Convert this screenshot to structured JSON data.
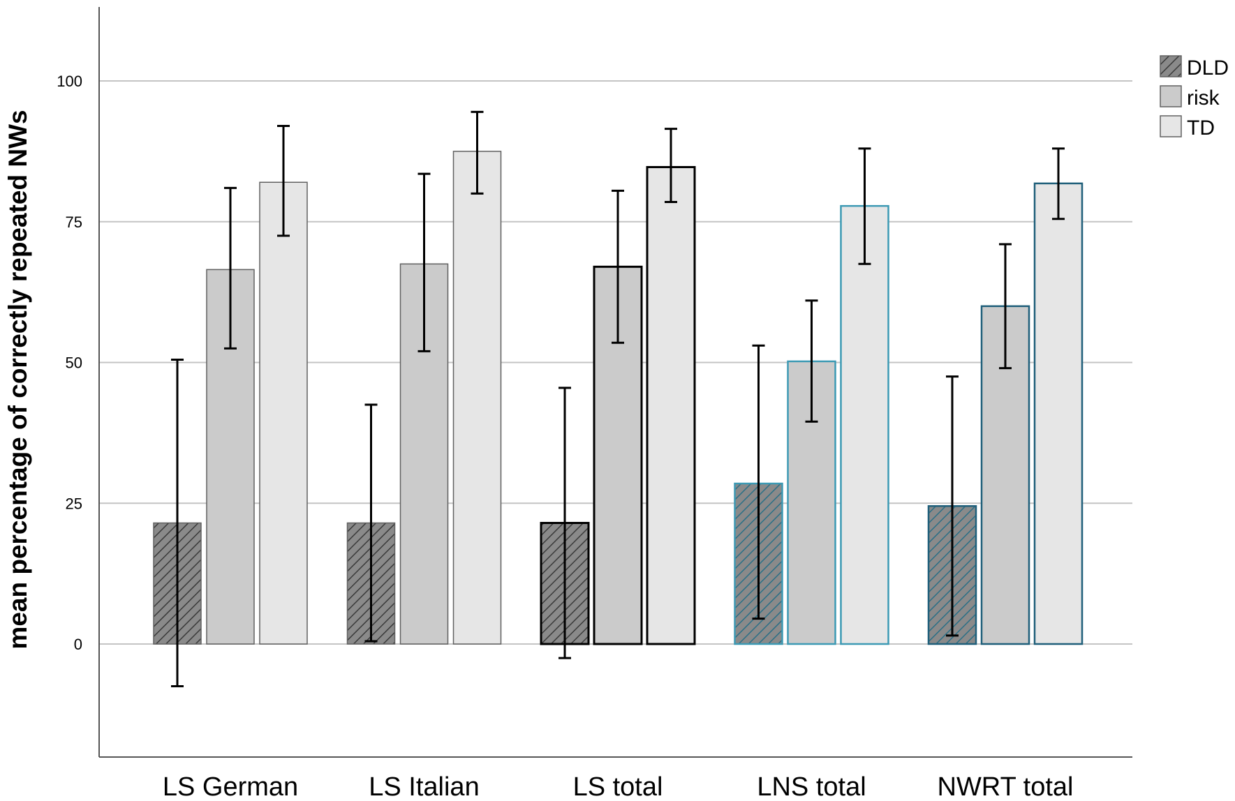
{
  "chart_data": {
    "type": "bar",
    "title": "",
    "xlabel": "",
    "ylabel": "mean percentage of correctly repeated NWs",
    "ylim": [
      -20,
      114
    ],
    "yticks": [
      0,
      25,
      50,
      75,
      100
    ],
    "yticks_text": [
      "0",
      "25",
      "50",
      "75",
      "100"
    ],
    "grid": true,
    "legend_position": "top-right",
    "categories": [
      "LS German",
      "LS Italian",
      "LS total",
      "LNS total",
      "NWRT total"
    ],
    "category_edge_colors": [
      "#606060",
      "#606060",
      "#000000",
      "#3d9ab4",
      "#1f5f7a"
    ],
    "category_edge_widths": [
      1.5,
      1.5,
      3,
      2.5,
      2.5
    ],
    "series": [
      {
        "name": "DLD",
        "pattern": "hatched",
        "fill": "#8a8a8a",
        "values": [
          21.5,
          21.5,
          21.5,
          28.5,
          24.5
        ],
        "error_low": [
          -7.5,
          0.5,
          -2.5,
          4.5,
          1.5
        ],
        "error_high": [
          50.5,
          42.5,
          45.5,
          53,
          47.5
        ]
      },
      {
        "name": "risk",
        "pattern": "solid",
        "fill": "#cbcbcb",
        "values": [
          66.5,
          67.5,
          67,
          50.2,
          60
        ],
        "error_low": [
          52.5,
          52,
          53.5,
          39.5,
          49
        ],
        "error_high": [
          81,
          83.5,
          80.5,
          61,
          71
        ]
      },
      {
        "name": "TD",
        "pattern": "solid",
        "fill": "#e6e6e6",
        "values": [
          82,
          87.5,
          84.7,
          77.8,
          81.8
        ],
        "error_low": [
          72.5,
          80,
          78.5,
          67.5,
          75.5
        ],
        "error_high": [
          92,
          94.5,
          91.5,
          88,
          88
        ]
      }
    ]
  }
}
